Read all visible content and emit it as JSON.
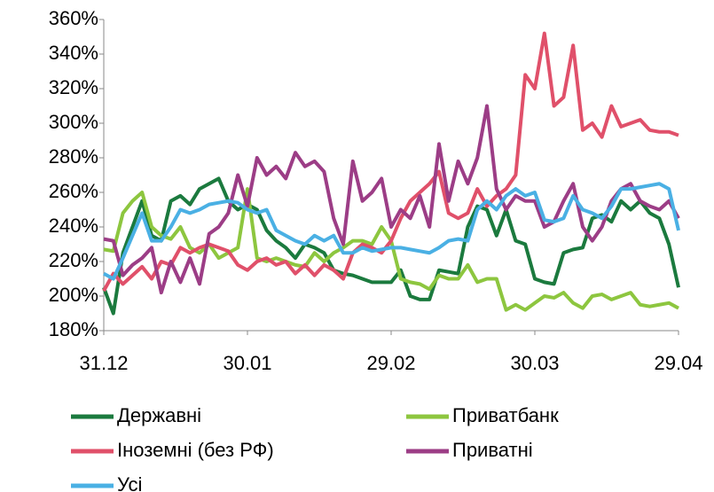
{
  "chart_data": {
    "type": "line",
    "x": [
      0,
      2,
      4,
      6,
      8,
      10,
      12,
      14,
      16,
      18,
      20,
      22,
      24,
      26,
      28,
      30,
      32,
      34,
      36,
      38,
      40,
      42,
      44,
      46,
      48,
      50,
      52,
      54,
      56,
      58,
      60,
      62,
      64,
      66,
      68,
      70,
      72,
      74,
      76,
      78,
      80,
      82,
      84,
      86,
      88,
      90,
      92,
      94,
      96,
      98,
      100,
      102,
      104,
      106,
      108,
      110,
      112,
      114,
      116,
      118,
      120
    ],
    "xlim": [
      0,
      120
    ],
    "xticks": [
      {
        "value": 0,
        "label": "31.12"
      },
      {
        "value": 30,
        "label": "30.01"
      },
      {
        "value": 60,
        "label": "29.02"
      },
      {
        "value": 90,
        "label": "30.03"
      },
      {
        "value": 120,
        "label": "29.04"
      }
    ],
    "ylim": [
      180,
      360
    ],
    "yticks": [
      {
        "value": 180,
        "label": "180%"
      },
      {
        "value": 200,
        "label": "200%"
      },
      {
        "value": 220,
        "label": "220%"
      },
      {
        "value": 240,
        "label": "240%"
      },
      {
        "value": 260,
        "label": "260%"
      },
      {
        "value": 280,
        "label": "280%"
      },
      {
        "value": 300,
        "label": "300%"
      },
      {
        "value": 320,
        "label": "320%"
      },
      {
        "value": 340,
        "label": "340%"
      },
      {
        "value": 360,
        "label": "360%"
      }
    ],
    "series": [
      {
        "name": "Державні",
        "color": "#1b7a3e",
        "values": [
          205,
          190,
          225,
          240,
          255,
          235,
          232,
          255,
          258,
          253,
          262,
          265,
          268,
          255,
          250,
          253,
          250,
          238,
          232,
          228,
          222,
          230,
          228,
          225,
          215,
          213,
          212,
          210,
          208,
          208,
          208,
          215,
          200,
          198,
          198,
          215,
          214,
          213,
          240,
          252,
          250,
          235,
          250,
          232,
          230,
          210,
          208,
          207,
          225,
          227,
          228,
          245,
          247,
          243,
          255,
          250,
          255,
          248,
          245,
          230,
          205
        ]
      },
      {
        "name": "Приватбанк",
        "color": "#8dc63f",
        "values": [
          227,
          226,
          248,
          255,
          260,
          240,
          235,
          233,
          240,
          228,
          225,
          230,
          222,
          225,
          228,
          262,
          222,
          220,
          222,
          220,
          218,
          217,
          225,
          220,
          225,
          228,
          232,
          232,
          230,
          240,
          232,
          210,
          208,
          207,
          204,
          212,
          210,
          210,
          218,
          208,
          210,
          210,
          192,
          195,
          192,
          196,
          200,
          199,
          202,
          196,
          193,
          200,
          201,
          198,
          200,
          202,
          195,
          194,
          195,
          196,
          193
        ]
      },
      {
        "name": "Іноземні (без РФ)",
        "color": "#e0506a",
        "values": [
          203,
          213,
          207,
          212,
          217,
          210,
          220,
          218,
          228,
          225,
          228,
          230,
          228,
          226,
          218,
          215,
          220,
          222,
          218,
          220,
          213,
          218,
          212,
          218,
          215,
          210,
          225,
          230,
          228,
          225,
          232,
          245,
          255,
          260,
          265,
          272,
          248,
          245,
          248,
          262,
          252,
          258,
          262,
          270,
          328,
          320,
          352,
          310,
          315,
          345,
          296,
          300,
          292,
          310,
          298,
          300,
          302,
          296,
          295,
          295,
          293
        ]
      },
      {
        "name": "Приватні",
        "color": "#9c3d86",
        "values": [
          233,
          232,
          212,
          218,
          222,
          228,
          202,
          220,
          208,
          222,
          207,
          236,
          240,
          248,
          270,
          252,
          280,
          270,
          275,
          268,
          283,
          275,
          278,
          272,
          245,
          230,
          278,
          255,
          260,
          268,
          240,
          250,
          245,
          258,
          240,
          288,
          255,
          278,
          265,
          280,
          310,
          262,
          250,
          258,
          255,
          255,
          240,
          243,
          255,
          265,
          240,
          232,
          240,
          255,
          262,
          265,
          255,
          252,
          250,
          255,
          245
        ]
      },
      {
        "name": "Усі",
        "color": "#4ab0e4",
        "values": [
          213,
          210,
          222,
          235,
          248,
          232,
          232,
          240,
          250,
          248,
          250,
          253,
          254,
          255,
          254,
          250,
          248,
          250,
          238,
          235,
          232,
          230,
          235,
          232,
          235,
          225,
          225,
          228,
          226,
          227,
          228,
          228,
          227,
          226,
          225,
          228,
          232,
          233,
          232,
          250,
          255,
          250,
          258,
          262,
          258,
          260,
          244,
          243,
          245,
          258,
          250,
          248,
          245,
          252,
          262,
          262,
          263,
          264,
          265,
          262,
          238
        ]
      }
    ]
  }
}
